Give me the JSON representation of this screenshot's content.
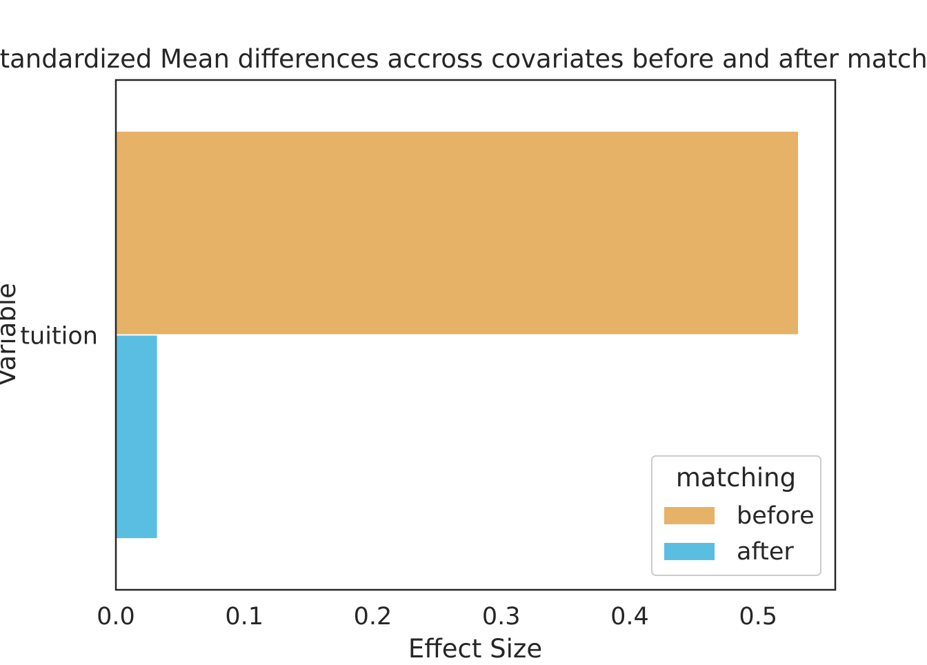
{
  "chart_data": {
    "type": "bar",
    "orientation": "horizontal",
    "title": "Standardized Mean differences accross covariates before and after matching",
    "xlabel": "Effect Size",
    "ylabel": "Variable",
    "categories": [
      "tuition"
    ],
    "series": [
      {
        "name": "before",
        "values": [
          0.531
        ],
        "color": "#E5B267"
      },
      {
        "name": "after",
        "values": [
          0.032
        ],
        "color": "#5ABEE3"
      }
    ],
    "xlim": [
      0,
      0.56
    ],
    "xticks": [
      0.0,
      0.1,
      0.2,
      0.3,
      0.4,
      0.5
    ],
    "xtick_labels": [
      "0.0",
      "0.1",
      "0.2",
      "0.3",
      "0.4",
      "0.5"
    ],
    "grid": false,
    "legend": {
      "title": "matching",
      "placement": "lower-right",
      "entries": [
        "before",
        "after"
      ]
    }
  }
}
